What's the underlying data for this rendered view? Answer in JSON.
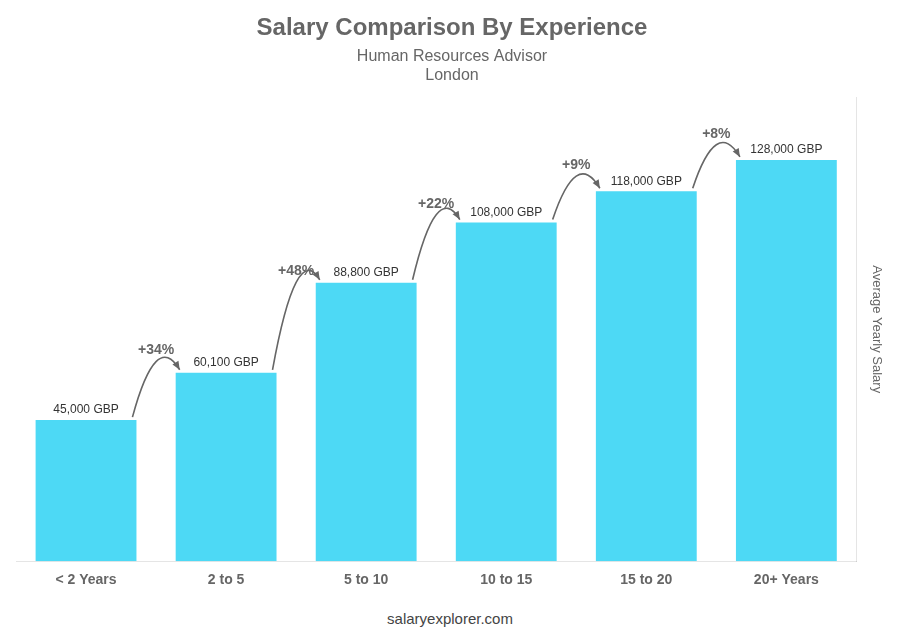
{
  "chart_data": {
    "type": "bar",
    "title": "Salary Comparison By Experience",
    "subtitle": "Human Resources Advisor",
    "location": "London",
    "footer": "salaryexplorer.com",
    "ylabel": "Average Yearly Salary",
    "categories": [
      "< 2 Years",
      "2 to 5",
      "5 to 10",
      "10 to 15",
      "15 to 20",
      "20+ Years"
    ],
    "values": [
      45000,
      60100,
      88800,
      108000,
      118000,
      128000
    ],
    "value_labels": [
      "45,000 GBP",
      "60,100 GBP",
      "88,800 GBP",
      "108,000 GBP",
      "118,000 GBP",
      "128,000 GBP"
    ],
    "data_labels": true,
    "color": "#4dd9f5",
    "ylim": [
      0,
      148000
    ],
    "yticks": [],
    "tick_labels": "x",
    "grid": false,
    "annotations": [
      {
        "text": "+34%",
        "from": 0,
        "to": 1
      },
      {
        "text": "+48%",
        "from": 1,
        "to": 2
      },
      {
        "text": "+22%",
        "from": 2,
        "to": 3
      },
      {
        "text": "+9%",
        "from": 3,
        "to": 4
      },
      {
        "text": "+8%",
        "from": 4,
        "to": 5
      }
    ]
  }
}
